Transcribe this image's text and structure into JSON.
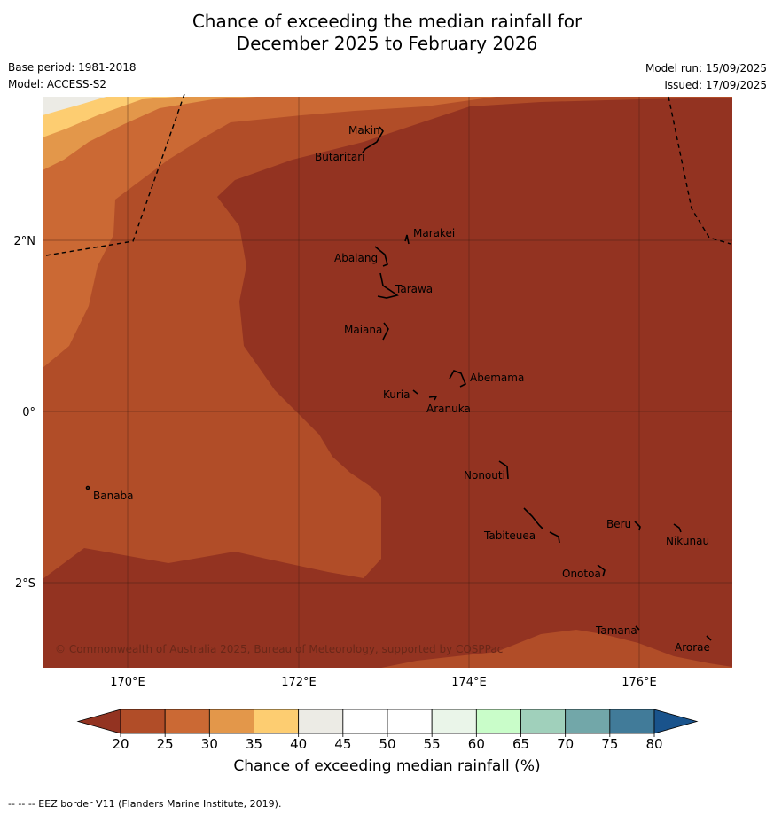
{
  "title_line1": "Chance of exceeding the median rainfall for",
  "title_line2": "December 2025 to February 2026",
  "base_period": "Base period: 1981-2018",
  "model": "Model: ACCESS-S2",
  "model_run": "Model run: 15/09/2025",
  "issued": "Issued: 17/09/2025",
  "copyright": "© Commonwealth of Australia 2025, Bureau of Meteorology, supported by COSPPac",
  "lon_ticks": [
    "170°E",
    "172°E",
    "174°E",
    "176°E"
  ],
  "lat_ticks": [
    "2°N",
    "0°",
    "2°S"
  ],
  "places": [
    "Makin",
    "Butaritari",
    "Marakei",
    "Abaiang",
    "Tarawa",
    "Maiana",
    "Abemama",
    "Kuria",
    "Aranuka",
    "Nonouti",
    "Banaba",
    "Beru",
    "Nikunau",
    "Tabiteuea",
    "Onotoa",
    "Tamana",
    "Arorae"
  ],
  "legend": {
    "label": "Chance of exceeding median rainfall (%)",
    "ticks": [
      "20",
      "25",
      "30",
      "35",
      "40",
      "45",
      "50",
      "55",
      "60",
      "65",
      "70",
      "75",
      "80"
    ],
    "colors": [
      "#933321",
      "#b14d28",
      "#cb6934",
      "#e3974a",
      "#fdcd71",
      "#ecebe5",
      "#ffffff",
      "#ffffff",
      "#eaf5e9",
      "#c9fdc9",
      "#a0d0bb",
      "#72a7a9",
      "#417b99",
      "#19538c"
    ]
  },
  "footer": "--  --  -- EEZ border V11 (Flanders Marine Institute, 2019)."
}
